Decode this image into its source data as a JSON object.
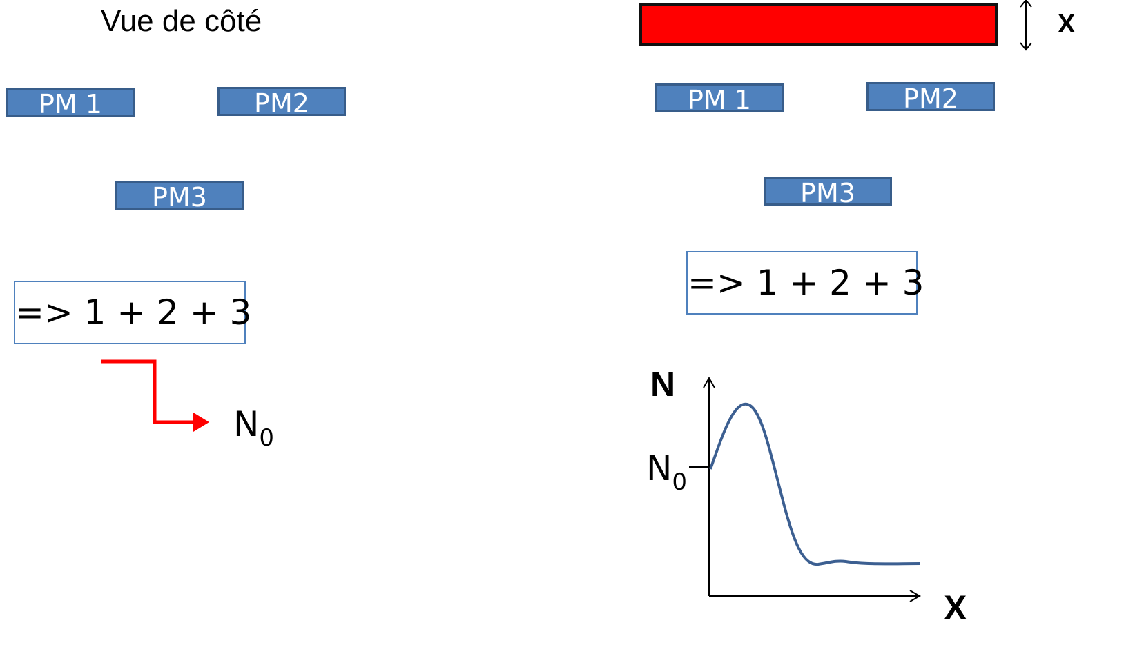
{
  "left_panel": {
    "title": "Vue de côté",
    "pm1": "PM 1",
    "pm2": "PM2",
    "pm3": "PM3",
    "sum": "=>  1 + 2 + 3",
    "result": "N",
    "result_sub": "0"
  },
  "right_panel": {
    "bar_label": "X",
    "pm1": "PM 1",
    "pm2": "PM2",
    "pm3": "PM3",
    "sum": "=>  1 + 2 + 3",
    "graph": {
      "y_label": "N",
      "x_label": "X",
      "tick_label": "N",
      "tick_label_sub": "0"
    }
  },
  "colors": {
    "pm_fill": "#4f81bd",
    "pm_border": "#385d8a",
    "bar_fill": "#ff0000",
    "arrow": "#ff0000",
    "curve": "#3c5f91"
  }
}
